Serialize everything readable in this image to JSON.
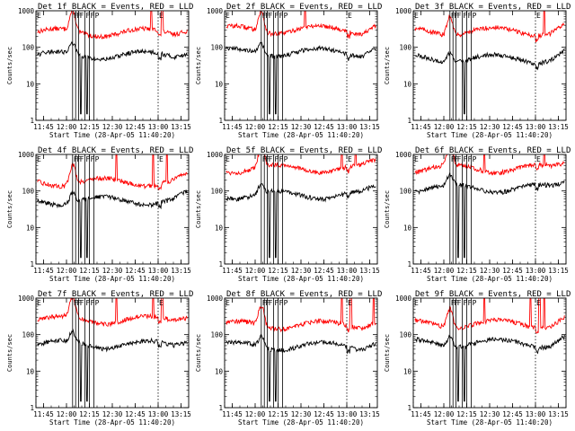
{
  "chart_data": [
    {
      "title": "Det 1f BLACK = Events, RED = LLD",
      "events_base": 62,
      "lld_base": 260,
      "lld_spikes": [
        12.93,
        13.05
      ],
      "lld_dips": [],
      "events_dips": [
        12.16,
        12.23
      ]
    },
    {
      "title": "Det 2f BLACK = Events, RED = LLD",
      "events_base": 75,
      "lld_base": 310,
      "lld_spikes": [
        12.55
      ],
      "lld_dips": [],
      "events_dips": [
        12.16,
        12.23
      ]
    },
    {
      "title": "Det 3f BLACK = Events, RED = LLD",
      "events_base": 50,
      "lld_base": 280,
      "lld_spikes": [
        13.1
      ],
      "lld_dips": [],
      "events_dips": [
        12.23
      ]
    },
    {
      "title": "Det 4f BLACK = Events, RED = LLD",
      "events_base": 55,
      "lld_base": 180,
      "lld_spikes": [
        12.55,
        12.95,
        13.1
      ],
      "lld_dips": [],
      "events_dips": [
        12.16,
        12.23
      ]
    },
    {
      "title": "Det 5f BLACK = Events, RED = LLD",
      "events_base": 80,
      "lld_base": 420,
      "lld_spikes": [
        12.95,
        13.1
      ],
      "lld_dips": [],
      "events_dips": [
        12.16,
        12.23
      ]
    },
    {
      "title": "Det 6f BLACK = Events, RED = LLD",
      "events_base": 120,
      "lld_base": 420,
      "lld_spikes": [
        12.45,
        13.1
      ],
      "lld_dips": [],
      "events_dips": [
        12.16,
        12.23
      ]
    },
    {
      "title": "Det 7f BLACK = Events, RED = LLD",
      "events_base": 55,
      "lld_base": 260,
      "lld_spikes": [
        12.55,
        12.95,
        13.05
      ],
      "lld_dips": [],
      "events_dips": [
        12.16,
        12.23
      ]
    },
    {
      "title": "Det 8f BLACK = Events, RED = LLD",
      "events_base": 50,
      "lld_base": 190,
      "lld_spikes": [
        12.95,
        13.05,
        13.3
      ],
      "lld_dips": [],
      "events_dips": [
        12.16,
        12.23
      ]
    },
    {
      "title": "Det 9f BLACK = Events, RED = LLD",
      "events_base": 60,
      "lld_base": 200,
      "lld_spikes": [
        12.45,
        12.95,
        13.05,
        13.1
      ],
      "lld_dips": [],
      "events_dips": [
        12.16,
        12.23
      ]
    }
  ],
  "shared": {
    "type": "line",
    "ylabel": "Counts/sec",
    "xlabel": "Start Time (28-Apr-05 11:40:20)",
    "yscale": "log",
    "ylim": [
      1,
      1000
    ],
    "ytick_labels": [
      "1000",
      "100",
      "10",
      "1"
    ],
    "xlim_minutes": [
      0,
      100
    ],
    "xtick_labels": [
      "11:45",
      "12:00",
      "12:15",
      "12:30",
      "12:45",
      "13:00",
      "13:15"
    ],
    "xtick_minutes": [
      5,
      20,
      35,
      50,
      65,
      80,
      95
    ],
    "interval_markers": [
      {
        "minute": 0,
        "label": "E"
      },
      {
        "minute": 24,
        "label": "F"
      },
      {
        "minute": 26,
        "label": "F"
      },
      {
        "minute": 28,
        "label": "F"
      },
      {
        "minute": 32,
        "label": "F"
      },
      {
        "minute": 35,
        "label": "F"
      },
      {
        "minute": 38,
        "label": "P"
      },
      {
        "minute": 80,
        "label": "E"
      }
    ],
    "colors": {
      "events": "#000000",
      "lld": "#ff0000",
      "marker": "#000000"
    }
  }
}
